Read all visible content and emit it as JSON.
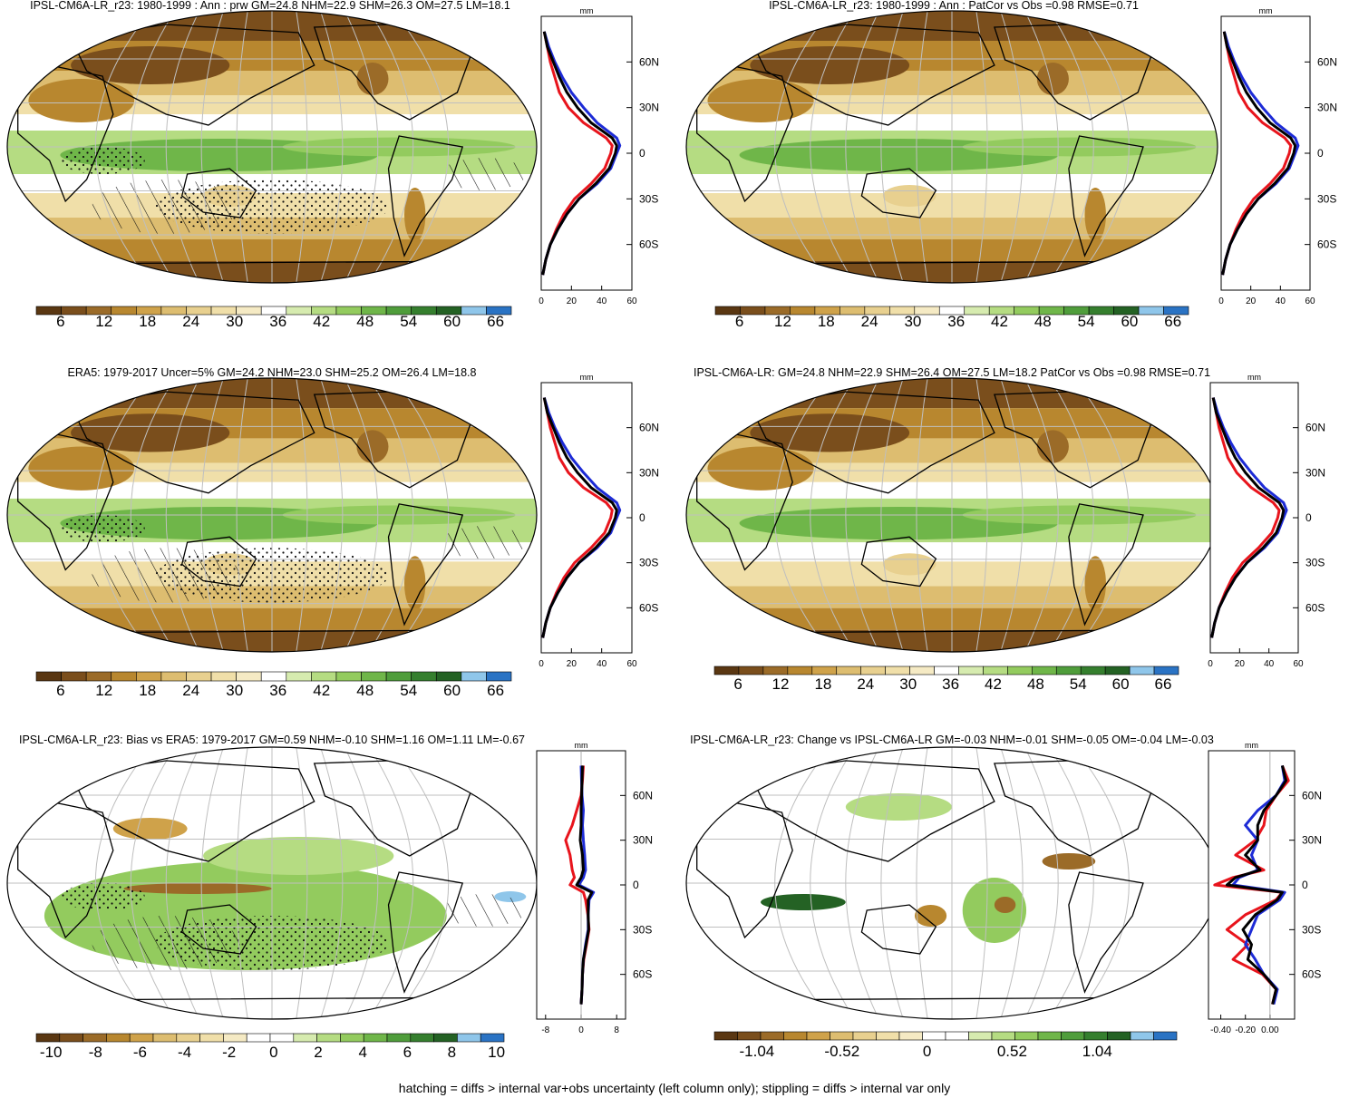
{
  "footnote": "hatching = diffs > internal var+obs uncertainty (left column only); stippling = diffs > internal var only",
  "colors": {
    "mean_scale": [
      "#5a3712",
      "#7a4e1c",
      "#9b6b28",
      "#b8872f",
      "#cfa24a",
      "#ddbd70",
      "#e8d08f",
      "#f0dfa9",
      "#f5eac4",
      "#ffffff",
      "#d6ebaf",
      "#b5dc82",
      "#93cb5e",
      "#6fb649",
      "#4f9d3b",
      "#357f2e",
      "#246224",
      "#8fc6ea",
      "#2a73c4"
    ],
    "diff_scale": [
      "#5a3712",
      "#7a4e1c",
      "#9b6b28",
      "#b8872f",
      "#cfa24a",
      "#ddbd70",
      "#e8d08f",
      "#f0dfa9",
      "#f5eac4",
      "#ffffff",
      "#ffffff",
      "#d6ebaf",
      "#b5dc82",
      "#93cb5e",
      "#6fb649",
      "#4f9d3b",
      "#357f2e",
      "#246224",
      "#8fc6ea",
      "#2a73c4"
    ],
    "zonal_lines": [
      "#e8141c",
      "#1d2bd6",
      "#000000"
    ]
  },
  "chart_data": [
    {
      "id": "p1",
      "type": "map",
      "title": "IPSL-CM6A-LR_r23: 1980-1999 : Ann : prw GM=24.8 NHM=22.9 SHM=26.3 OM=27.5 LM=18.1",
      "colorbar_ticks": [
        "6",
        "12",
        "18",
        "24",
        "30",
        "36",
        "42",
        "48",
        "54",
        "60",
        "66"
      ],
      "zonal": {
        "type": "line",
        "unit": "mm",
        "xlim": [
          0,
          60
        ],
        "x_ticks": [
          "0",
          "20",
          "40",
          "60"
        ],
        "lat_ticks": [
          "60N",
          "30N",
          "0",
          "30S",
          "60S"
        ],
        "lat": [
          -80,
          -70,
          -60,
          -50,
          -40,
          -30,
          -20,
          -10,
          0,
          5,
          10,
          20,
          30,
          40,
          50,
          60,
          70,
          80
        ],
        "series": [
          {
            "values": [
              1,
              3,
              6,
              10,
              15,
              22,
              33,
              42,
              46,
              47,
              43,
              28,
              18,
              12,
              9,
              6,
              4,
              2
            ]
          },
          {
            "values": [
              1,
              3,
              6,
              11,
              17,
              25,
              37,
              46,
              50,
              52,
              50,
              37,
              28,
              20,
              14,
              9,
              5,
              2
            ]
          },
          {
            "values": [
              1,
              3,
              6,
              11,
              17,
              25,
              36,
              45,
              49,
              50,
              47,
              33,
              24,
              17,
              12,
              8,
              4,
              2
            ]
          }
        ]
      },
      "hatching": true,
      "stippling": true
    },
    {
      "id": "p2",
      "type": "map",
      "title": "IPSL-CM6A-LR_r23: 1980-1999 : Ann : PatCor vs Obs =0.98 RMSE=0.71",
      "colorbar_ticks": [
        "6",
        "12",
        "18",
        "24",
        "30",
        "36",
        "42",
        "48",
        "54",
        "60",
        "66"
      ],
      "zonal": {
        "type": "line",
        "unit": "mm",
        "xlim": [
          0,
          60
        ],
        "x_ticks": [
          "0",
          "20",
          "40",
          "60"
        ],
        "lat_ticks": [
          "60N",
          "30N",
          "0",
          "30S",
          "60S"
        ],
        "lat": [
          -80,
          -70,
          -60,
          -50,
          -40,
          -30,
          -20,
          -10,
          0,
          5,
          10,
          20,
          30,
          40,
          50,
          60,
          70,
          80
        ],
        "series": [
          {
            "values": [
              1,
              3,
              6,
              10,
              15,
              22,
              33,
              42,
              46,
              47,
              43,
              28,
              18,
              12,
              9,
              6,
              4,
              2
            ]
          },
          {
            "values": [
              1,
              3,
              6,
              11,
              17,
              25,
              37,
              46,
              50,
              52,
              50,
              37,
              28,
              20,
              14,
              9,
              5,
              2
            ]
          },
          {
            "values": [
              1,
              3,
              6,
              11,
              17,
              25,
              36,
              45,
              49,
              50,
              47,
              33,
              24,
              17,
              12,
              8,
              4,
              2
            ]
          }
        ]
      },
      "hatching": false,
      "stippling": false
    },
    {
      "id": "p3",
      "type": "map",
      "title": "ERA5: 1979-2017 Uncer=5% GM=24.2 NHM=23.0 SHM=25.2 OM=26.4 LM=18.8",
      "colorbar_ticks": [
        "6",
        "12",
        "18",
        "24",
        "30",
        "36",
        "42",
        "48",
        "54",
        "60",
        "66"
      ],
      "zonal": {
        "type": "line",
        "unit": "mm",
        "xlim": [
          0,
          60
        ],
        "x_ticks": [
          "0",
          "20",
          "40",
          "60"
        ],
        "lat_ticks": [
          "60N",
          "30N",
          "0",
          "30S",
          "60S"
        ],
        "lat": [
          -80,
          -70,
          -60,
          -50,
          -40,
          -30,
          -20,
          -10,
          0,
          5,
          10,
          20,
          30,
          40,
          50,
          60,
          70,
          80
        ],
        "series": [
          {
            "values": [
              1,
              3,
              6,
              10,
              15,
              22,
              33,
              42,
              46,
              47,
              43,
              28,
              18,
              12,
              9,
              6,
              4,
              2
            ]
          },
          {
            "values": [
              1,
              3,
              6,
              11,
              17,
              25,
              37,
              46,
              50,
              52,
              50,
              37,
              28,
              20,
              14,
              9,
              5,
              2
            ]
          },
          {
            "values": [
              1,
              3,
              6,
              11,
              17,
              25,
              36,
              45,
              49,
              50,
              47,
              33,
              24,
              17,
              12,
              8,
              4,
              2
            ]
          }
        ]
      },
      "hatching": true,
      "stippling": true
    },
    {
      "id": "p4",
      "type": "map",
      "title": "IPSL-CM6A-LR: GM=24.8 NHM=22.9 SHM=26.4 OM=27.5 LM=18.2 PatCor vs Obs =0.98 RMSE=0.71",
      "colorbar_ticks": [
        "6",
        "12",
        "18",
        "24",
        "30",
        "36",
        "42",
        "48",
        "54",
        "60",
        "66"
      ],
      "zonal": {
        "type": "line",
        "unit": "mm",
        "xlim": [
          0,
          60
        ],
        "x_ticks": [
          "0",
          "20",
          "40",
          "60"
        ],
        "lat_ticks": [
          "60N",
          "30N",
          "0",
          "30S",
          "60S"
        ],
        "lat": [
          -80,
          -70,
          -60,
          -50,
          -40,
          -30,
          -20,
          -10,
          0,
          5,
          10,
          20,
          30,
          40,
          50,
          60,
          70,
          80
        ],
        "series": [
          {
            "values": [
              1,
              3,
              6,
              10,
              15,
              22,
              33,
              42,
              46,
              47,
              43,
              28,
              18,
              12,
              9,
              6,
              4,
              2
            ]
          },
          {
            "values": [
              1,
              3,
              6,
              11,
              17,
              25,
              37,
              46,
              50,
              52,
              50,
              37,
              28,
              20,
              14,
              9,
              5,
              2
            ]
          },
          {
            "values": [
              1,
              3,
              6,
              11,
              17,
              25,
              36,
              45,
              49,
              50,
              47,
              33,
              24,
              17,
              12,
              8,
              4,
              2
            ]
          }
        ]
      },
      "hatching": false,
      "stippling": false
    },
    {
      "id": "p5",
      "type": "map",
      "title": "IPSL-CM6A-LR_r23: Bias vs ERA5: 1979-2017 GM=0.59 NHM=-0.10 SHM=1.16 OM=1.11 LM=-0.67",
      "colorbar_ticks": [
        "-10",
        "-8",
        "-6",
        "-4",
        "-2",
        "0",
        "2",
        "4",
        "6",
        "8",
        "10"
      ],
      "zonal": {
        "type": "line",
        "unit": "mm",
        "xlim": [
          -10,
          10
        ],
        "x_ticks": [
          "-8",
          "0",
          "8"
        ],
        "lat_ticks": [
          "60N",
          "30N",
          "0",
          "30S",
          "60S"
        ],
        "lat": [
          -80,
          -70,
          -60,
          -50,
          -40,
          -30,
          -20,
          -10,
          -5,
          0,
          5,
          10,
          20,
          30,
          40,
          50,
          60,
          70,
          80
        ],
        "series": [
          {
            "values": [
              0,
              0.2,
              0.3,
              0.6,
              1.2,
              1.8,
              1.5,
              1.0,
              0.5,
              -2.5,
              -1.5,
              -2.0,
              -2.5,
              -3.5,
              -2.0,
              -1.0,
              0,
              0.3,
              0.5
            ]
          },
          {
            "values": [
              0,
              0.2,
              0.3,
              0.5,
              1.0,
              1.6,
              1.6,
              1.8,
              2.8,
              -0.5,
              0.5,
              1.0,
              0.8,
              0.5,
              0.3,
              0.5,
              0.2,
              0.1,
              0
            ]
          },
          {
            "values": [
              0,
              0.2,
              0.3,
              0.5,
              1.1,
              1.7,
              1.6,
              1.6,
              2.4,
              -1.0,
              0,
              0.5,
              0.3,
              -0.2,
              0,
              0,
              0.1,
              0.2,
              0.3
            ]
          }
        ]
      },
      "hatching": true,
      "stippling": true
    },
    {
      "id": "p6",
      "type": "map",
      "title": "IPSL-CM6A-LR_r23: Change vs IPSL-CM6A-LR GM=-0.03 NHM=-0.01 SHM=-0.05 OM=-0.04 LM=-0.03",
      "colorbar_ticks": [
        "-1.04",
        "-0.52",
        "0",
        "0.52",
        "1.04"
      ],
      "zonal": {
        "type": "line",
        "unit": "mm",
        "xlim": [
          -0.5,
          0.2
        ],
        "x_ticks": [
          "-0.40",
          "-0.20",
          "0.00"
        ],
        "lat_ticks": [
          "60N",
          "30N",
          "0",
          "30S",
          "60S"
        ],
        "lat": [
          -80,
          -70,
          -60,
          -50,
          -40,
          -30,
          -20,
          -10,
          -5,
          0,
          5,
          10,
          20,
          30,
          40,
          50,
          60,
          70,
          80
        ],
        "series": [
          {
            "values": [
              0.02,
              0.05,
              -0.06,
              -0.3,
              -0.18,
              -0.35,
              -0.2,
              0.05,
              0.1,
              -0.45,
              -0.3,
              -0.05,
              -0.28,
              -0.12,
              -0.05,
              -0.03,
              0.05,
              0.15,
              0.1
            ]
          },
          {
            "values": [
              0.03,
              0.06,
              -0.05,
              -0.12,
              -0.2,
              -0.15,
              -0.1,
              0.08,
              0.12,
              -0.3,
              -0.25,
              -0.1,
              -0.15,
              -0.1,
              -0.2,
              -0.1,
              0.05,
              0.12,
              0.1
            ]
          },
          {
            "values": [
              0.02,
              0.05,
              -0.05,
              -0.18,
              -0.15,
              -0.22,
              -0.12,
              0.06,
              0.1,
              -0.35,
              -0.28,
              -0.08,
              -0.2,
              -0.1,
              -0.1,
              -0.05,
              0.05,
              0.13,
              0.1
            ]
          }
        ]
      },
      "hatching": false,
      "stippling": false
    }
  ]
}
